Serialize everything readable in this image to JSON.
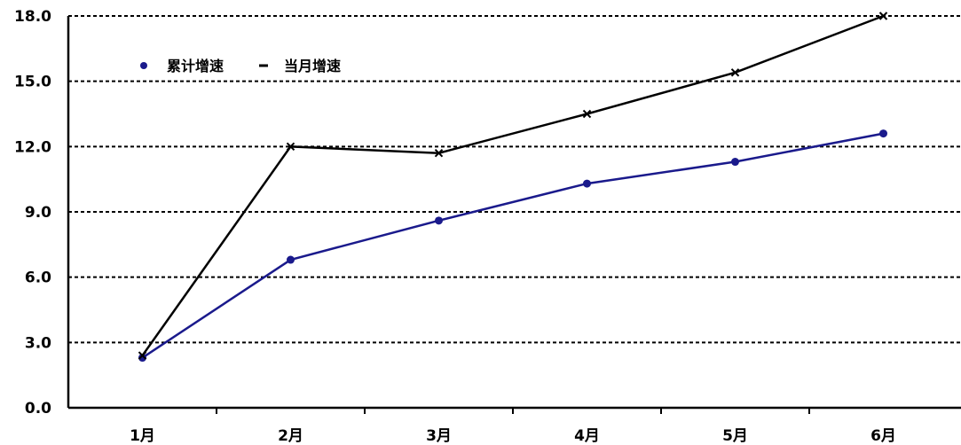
{
  "chart_data": {
    "type": "line",
    "categories": [
      "1月",
      "2月",
      "3月",
      "4月",
      "5月",
      "6月"
    ],
    "series": [
      {
        "name": "累计增速",
        "values": [
          2.3,
          6.8,
          8.6,
          10.3,
          11.3,
          12.6
        ],
        "color": "#1a1a8c",
        "marker": "dot"
      },
      {
        "name": "当月增速",
        "values": [
          2.4,
          12.0,
          11.7,
          13.5,
          15.4,
          18.0
        ],
        "color": "#000000",
        "marker": "x"
      }
    ],
    "yticks": [
      "0.0",
      "3.0",
      "6.0",
      "9.0",
      "12.0",
      "15.0",
      "18.0"
    ],
    "ylim": [
      0,
      18
    ],
    "grid": true,
    "gridstyle": "dashed",
    "legend": "top-left"
  }
}
